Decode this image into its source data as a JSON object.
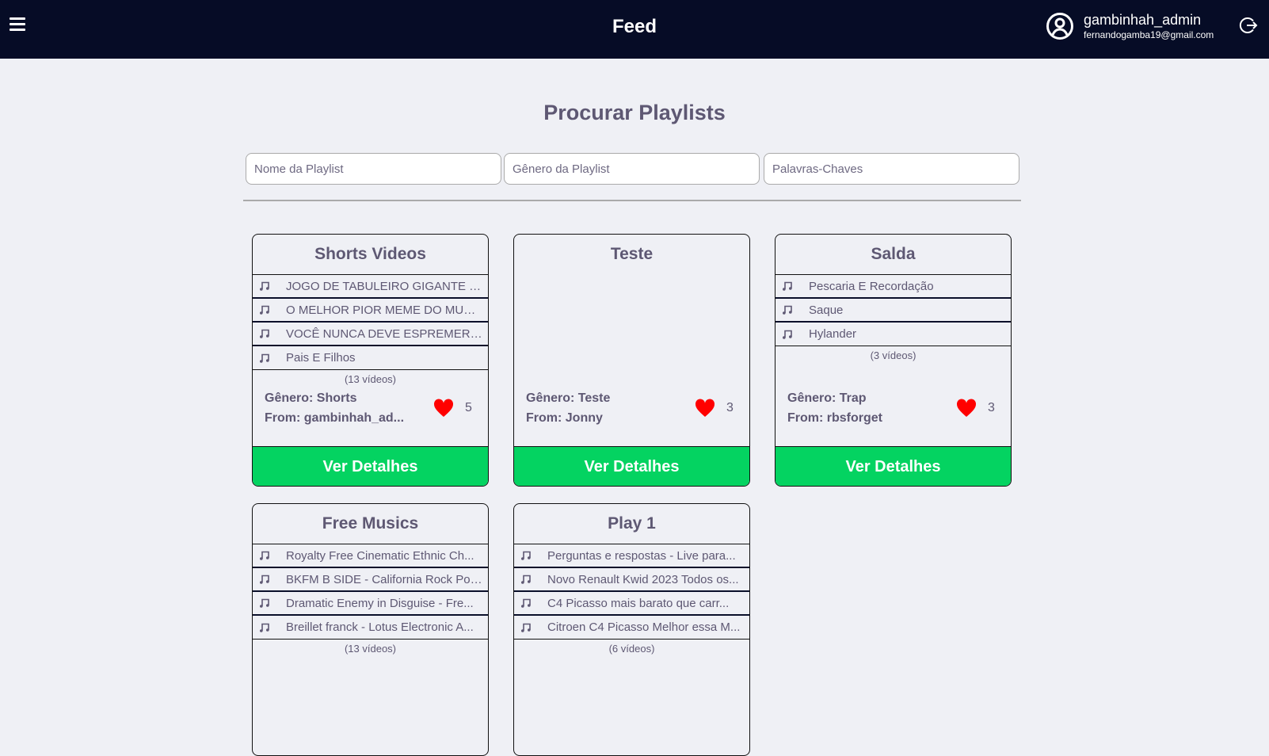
{
  "header": {
    "title": "Feed",
    "username": "gambinhah_admin",
    "email": "fernandogamba19@gmail.com"
  },
  "search": {
    "title": "Procurar Playlists",
    "name_placeholder": "Nome da Playlist",
    "genre_placeholder": "Gênero da Playlist",
    "keywords_placeholder": "Palavras-Chaves"
  },
  "colors": {
    "header_bg": "#060c26",
    "accent": "#04d361",
    "heart": "#ff0000",
    "text": "#5e5873"
  },
  "playlists": [
    {
      "title": "Shorts Videos",
      "videos": [
        "JOGO DE TABULEIRO GIGANTE EM F...",
        "O MELHOR PIOR MEME DO MUNDO! ...",
        "VOCÊ NUNCA DEVE ESPREMER UMA...",
        "Pais E Filhos"
      ],
      "count": "(13 vídeos)",
      "genre": "Gênero: Shorts",
      "from": "From: gambinhah_ad...",
      "likes": "5",
      "button": "Ver Detalhes"
    },
    {
      "title": "Teste",
      "videos": [],
      "count": "",
      "genre": "Gênero: Teste",
      "from": "From: Jonny",
      "likes": "3",
      "button": "Ver Detalhes"
    },
    {
      "title": "Salda",
      "videos": [
        "Pescaria E Recordação",
        "Saque",
        "Hylander"
      ],
      "count": "(3 vídeos)",
      "genre": "Gênero: Trap",
      "from": "From: rbsforget",
      "likes": "3",
      "button": "Ver Detalhes"
    },
    {
      "title": "Free Musics",
      "videos": [
        "Royalty Free Cinematic Ethnic Ch...",
        "BKFM B SIDE - California Rock Pop ...",
        "Dramatic Enemy in Disguise - Fre...",
        "Breillet franck - Lotus Electronic A..."
      ],
      "count": "(13 vídeos)",
      "genre": "",
      "from": "",
      "likes": "",
      "button": ""
    },
    {
      "title": "Play 1",
      "videos": [
        "Perguntas e respostas - Live para...",
        "Novo Renault Kwid 2023 Todos os...",
        "C4 Picasso mais barato que carr...",
        "Citroen C4 Picasso Melhor essa M..."
      ],
      "count": "(6 vídeos)",
      "genre": "",
      "from": "",
      "likes": "",
      "button": ""
    }
  ]
}
